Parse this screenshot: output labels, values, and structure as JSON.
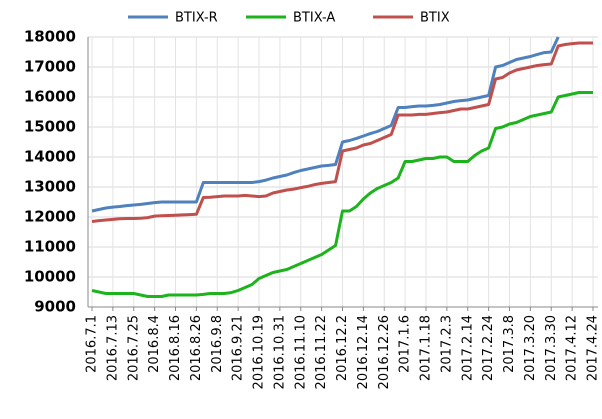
{
  "chart_data": {
    "type": "line",
    "categories": [
      "2016.7.1",
      null,
      null,
      "2016.7.13",
      null,
      null,
      "2016.7.25",
      null,
      null,
      "2016.8.4",
      null,
      null,
      "2016.8.16",
      null,
      null,
      "2016.8.26",
      null,
      null,
      "2016.9.8",
      null,
      null,
      "2016.9.21",
      null,
      null,
      "2016.10.19",
      null,
      null,
      "2016.10.31",
      null,
      null,
      "2016.11.10",
      null,
      null,
      "2016.11.22",
      null,
      null,
      "2016.12.2",
      null,
      null,
      "2016.12.14",
      null,
      null,
      "2016.12.26",
      null,
      null,
      "2017.1.6",
      null,
      null,
      "2017.1.18",
      null,
      null,
      "2017.2.3",
      null,
      null,
      "2017.2.14",
      null,
      null,
      "2017.2.24",
      null,
      null,
      "2017.3.8",
      null,
      null,
      "2017.3.20",
      null,
      null,
      "2017.3.30",
      null,
      null,
      "2017.4.12",
      null,
      null,
      "2017.4.24"
    ],
    "series": [
      {
        "name": "BTIX-R",
        "color": "#4f81bd",
        "values": [
          12200,
          12250,
          12300,
          12330,
          12350,
          12380,
          12400,
          12420,
          12450,
          12480,
          12500,
          12500,
          12500,
          12500,
          12500,
          12500,
          13150,
          13150,
          13150,
          13150,
          13150,
          13150,
          13150,
          13150,
          13180,
          13230,
          13300,
          13350,
          13400,
          13480,
          13550,
          13600,
          13650,
          13700,
          13720,
          13750,
          14500,
          14550,
          14620,
          14700,
          14780,
          14850,
          14950,
          15050,
          15650,
          15650,
          15680,
          15700,
          15700,
          15720,
          15750,
          15800,
          15850,
          15880,
          15900,
          15950,
          16000,
          16050,
          17000,
          17050,
          17150,
          17250,
          17300,
          17350,
          17420,
          17480,
          17500,
          18000,
          null,
          null,
          null,
          null,
          null
        ]
      },
      {
        "name": "BTIX-A",
        "color": "#1db31d",
        "values": [
          9550,
          9500,
          9450,
          9450,
          9450,
          9450,
          9450,
          9400,
          9350,
          9350,
          9350,
          9400,
          9400,
          9400,
          9400,
          9400,
          9420,
          9450,
          9450,
          9450,
          9480,
          9550,
          9650,
          9750,
          9950,
          10050,
          10150,
          10200,
          10250,
          10350,
          10450,
          10550,
          10650,
          10750,
          10900,
          11050,
          12200,
          12200,
          12350,
          12600,
          12800,
          12950,
          13050,
          13150,
          13300,
          13850,
          13850,
          13900,
          13950,
          13950,
          14000,
          14000,
          13850,
          13850,
          13850,
          14050,
          14200,
          14300,
          14950,
          15000,
          15100,
          15150,
          15250,
          15350,
          15400,
          15450,
          15500,
          16000,
          16050,
          16100,
          16150,
          16150,
          16150
        ]
      },
      {
        "name": "BTIX",
        "color": "#c0504d",
        "values": [
          11850,
          11880,
          11900,
          11920,
          11940,
          11950,
          11950,
          11960,
          11980,
          12030,
          12040,
          12050,
          12060,
          12070,
          12080,
          12090,
          12650,
          12660,
          12680,
          12700,
          12700,
          12700,
          12720,
          12700,
          12680,
          12700,
          12800,
          12850,
          12900,
          12930,
          12980,
          13020,
          13080,
          13120,
          13150,
          13180,
          14200,
          14250,
          14300,
          14400,
          14450,
          14550,
          14650,
          14750,
          15400,
          15400,
          15400,
          15420,
          15420,
          15450,
          15480,
          15500,
          15550,
          15600,
          15600,
          15650,
          15700,
          15750,
          16600,
          16650,
          16800,
          16900,
          16950,
          17000,
          17050,
          17080,
          17100,
          17700,
          17750,
          17780,
          17800,
          17800,
          17800
        ]
      }
    ],
    "ylim": [
      9000,
      18000
    ],
    "yticks": [
      9000,
      10000,
      11000,
      12000,
      13000,
      14000,
      15000,
      16000,
      17000,
      18000
    ],
    "grid": true,
    "legend": "top"
  }
}
